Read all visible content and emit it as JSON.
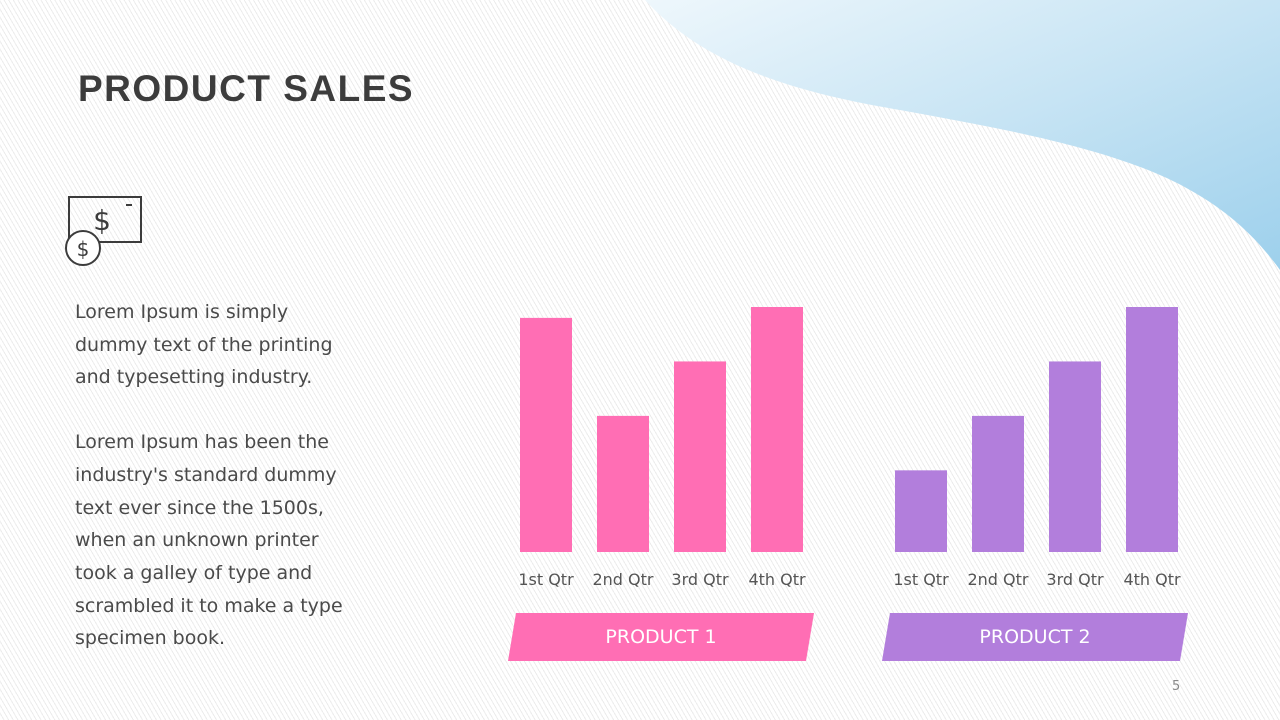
{
  "slide": {
    "title": "PRODUCT SALES",
    "paragraph1": "Lorem Ipsum is simply dummy text of the printing and typesetting industry.",
    "paragraph2": "Lorem Ipsum has been the industry's standard dummy text ever since the 1500s, when an unknown printer took a galley of type and scrambled it to make a type specimen book.",
    "page_number": "5",
    "icon": "money-bill-coin-icon"
  },
  "chart_data": [
    {
      "type": "bar",
      "categories": [
        "1st Qtr",
        "2nd Qtr",
        "3rd Qtr",
        "4th Qtr"
      ],
      "values": [
        4.3,
        2.5,
        3.5,
        4.5
      ],
      "label": "PRODUCT 1",
      "color": "#FF6EB4"
    },
    {
      "type": "bar",
      "categories": [
        "1st Qtr",
        "2nd Qtr",
        "3rd Qtr",
        "4th Qtr"
      ],
      "values": [
        1.5,
        2.5,
        3.5,
        4.5
      ],
      "label": "PRODUCT 2",
      "color": "#B27EDC"
    }
  ]
}
